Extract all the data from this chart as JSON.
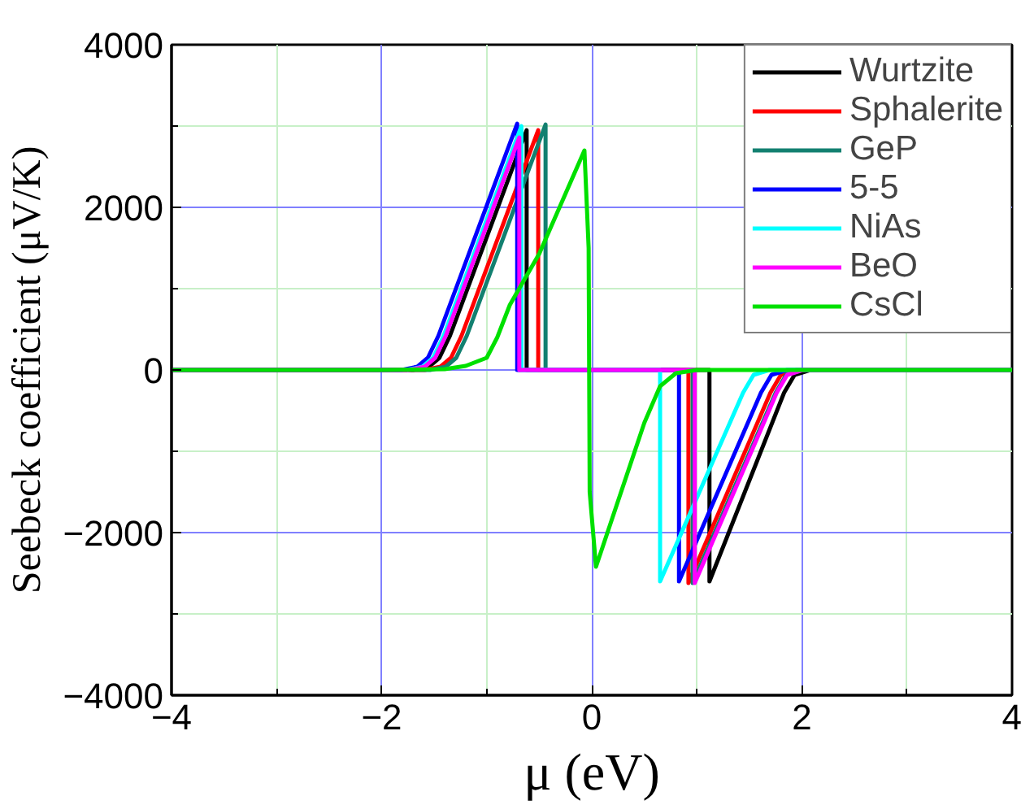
{
  "chart_data": {
    "type": "line",
    "xlabel": "μ (eV)",
    "ylabel": "Seebeck coefficient (μV/K)",
    "xlim": [
      -4,
      4
    ],
    "ylim": [
      -4000,
      4000
    ],
    "xticks": [
      -4,
      {
        "value": -3,
        "label": null
      },
      -2,
      {
        "value": -1,
        "label": null
      },
      0,
      {
        "value": 1,
        "label": null
      },
      2,
      {
        "value": 3,
        "label": null
      },
      4
    ],
    "yticks": [
      -4000,
      {
        "value": -3000,
        "label": null
      },
      -2000,
      {
        "value": -1000,
        "label": null
      },
      0,
      {
        "value": 1000,
        "label": null
      },
      2000,
      {
        "value": 3000,
        "label": null
      },
      4000
    ],
    "grid": true,
    "legend": "top right",
    "marker": "none",
    "line_style": "solid",
    "series": [
      {
        "name": "Wurtzite",
        "color": "#000000",
        "x": [
          -4,
          -2.5,
          -1.7,
          -1.55,
          -1.45,
          -1.35,
          -0.62,
          -0.62,
          1.12,
          1.12,
          1.83,
          1.93,
          2.08,
          4
        ],
        "values": [
          0,
          0,
          0,
          40,
          150,
          420,
          2950,
          0,
          0,
          -2600,
          -280,
          -60,
          0,
          0
        ]
      },
      {
        "name": "Sphalerite",
        "color": "#ff0000",
        "x": [
          -4,
          -2.5,
          -1.59,
          -1.44,
          -1.34,
          -1.24,
          -0.51,
          -0.51,
          0.92,
          0.92,
          1.7,
          1.8,
          1.95,
          4
        ],
        "values": [
          0,
          0,
          0,
          40,
          150,
          420,
          2950,
          0,
          0,
          -2620,
          -280,
          -60,
          0,
          0
        ]
      },
      {
        "name": "GeP",
        "color": "#128070",
        "x": [
          -4,
          -2.5,
          -1.54,
          -1.39,
          -1.29,
          -1.19,
          -0.44,
          -0.44,
          0.96,
          0.96,
          1.75,
          1.85,
          2.0,
          4
        ],
        "values": [
          0,
          0,
          0,
          40,
          150,
          420,
          3020,
          0,
          0,
          -2620,
          -280,
          -60,
          0,
          0
        ]
      },
      {
        "name": "5-5",
        "color": "#0000ff",
        "x": [
          -4,
          -2.5,
          -1.81,
          -1.66,
          -1.56,
          -1.46,
          -0.71,
          -0.71,
          0.83,
          0.83,
          1.61,
          1.71,
          1.86,
          4
        ],
        "values": [
          0,
          0,
          0,
          40,
          150,
          420,
          3030,
          0,
          0,
          -2600,
          -280,
          -60,
          0,
          0
        ]
      },
      {
        "name": "NiAs",
        "color": "#00ffff",
        "x": [
          -1.76,
          -1.61,
          -1.51,
          -1.41,
          -0.67,
          -0.67,
          0.65,
          0.65,
          1.44,
          1.54,
          1.69,
          4
        ],
        "values": [
          0,
          40,
          150,
          420,
          3000,
          0,
          0,
          -2600,
          -280,
          -60,
          0,
          0
        ]
      },
      {
        "name": "BeO",
        "color": "#ff00ff",
        "x": [
          -4,
          -2.5,
          -1.74,
          -1.59,
          -1.49,
          -1.39,
          -0.69,
          -0.69,
          0.98,
          0.98,
          1.76,
          1.86,
          2.01,
          4
        ],
        "values": [
          0,
          0,
          0,
          40,
          150,
          420,
          2860,
          0,
          0,
          -2620,
          -280,
          -60,
          0,
          0
        ]
      },
      {
        "name": "CsCl",
        "color": "#00e000",
        "x": [
          -4,
          -2,
          -1.4,
          -1.2,
          -1.0,
          -0.9,
          -0.78,
          -0.5,
          -0.07,
          -0.03,
          -0.02,
          0.04,
          0.5,
          0.65,
          0.8,
          1.0,
          4
        ],
        "values": [
          0,
          0,
          10,
          50,
          150,
          400,
          800,
          1430,
          2700,
          1500,
          -1500,
          -2420,
          -650,
          -200,
          -40,
          0,
          0
        ]
      }
    ]
  }
}
